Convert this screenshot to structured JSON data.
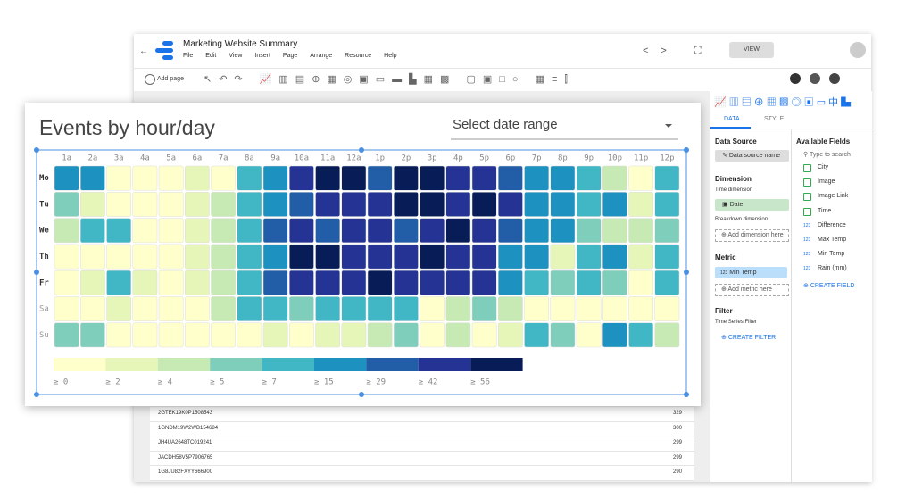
{
  "app": {
    "title": "Marketing Website Summary",
    "menu": [
      "File",
      "Edit",
      "View",
      "Insert",
      "Page",
      "Arrange",
      "Resource",
      "Help"
    ],
    "view_button": "VIEW",
    "add_page": "Add page"
  },
  "panel": {
    "tabs": [
      "DATA",
      "STYLE"
    ],
    "data_source": {
      "heading": "Data Source",
      "name": "Data source name"
    },
    "dimension": {
      "heading": "Dimension",
      "time_label": "Time dimension",
      "time_value": "Date",
      "breakdown_label": "Breakdown dimension",
      "add": "Add dimension here"
    },
    "metric": {
      "heading": "Metric",
      "type": "123",
      "value": "Min Temp",
      "add": "Add metric here"
    },
    "filter": {
      "heading": "Filter",
      "label": "Time Series Filter",
      "action": "CREATE FILTER"
    },
    "fields": {
      "heading": "Available Fields",
      "search": "Type to search",
      "items": [
        {
          "name": "City"
        },
        {
          "name": "Image"
        },
        {
          "name": "Image Link"
        },
        {
          "name": "Time"
        },
        {
          "type": "123",
          "name": "Difference"
        },
        {
          "type": "123",
          "name": "Max Temp"
        },
        {
          "type": "123",
          "name": "Min Temp"
        },
        {
          "type": "123",
          "name": "Rain (mm)"
        }
      ],
      "create": "CREATE FIELD"
    }
  },
  "table": {
    "rows": [
      [
        "2GTEK19K0P1508543",
        329
      ],
      [
        "1GNDM19W2WB154684",
        300
      ],
      [
        "JH4UA2648TC019241",
        299
      ],
      [
        "JACDH58V5P7906765",
        299
      ],
      [
        "1G8JU82FXYY666900",
        290
      ]
    ]
  },
  "date_selector": "Select date range",
  "chart_data": {
    "type": "heatmap",
    "title": "Events by hour/day",
    "columns": [
      "1a",
      "2a",
      "3a",
      "4a",
      "5a",
      "6a",
      "7a",
      "8a",
      "9a",
      "10a",
      "11a",
      "12a",
      "1p",
      "2p",
      "3p",
      "4p",
      "5p",
      "6p",
      "7p",
      "8p",
      "9p",
      "10p",
      "11p",
      "12p"
    ],
    "rows": [
      "Mo",
      "Tu",
      "We",
      "Th",
      "Fr",
      "Sa",
      "Su"
    ],
    "values": [
      [
        20,
        20,
        1,
        1,
        1,
        3,
        1,
        10,
        20,
        48,
        60,
        60,
        35,
        60,
        60,
        48,
        48,
        35,
        20,
        20,
        10,
        4,
        1,
        10
      ],
      [
        6,
        3,
        1,
        1,
        1,
        3,
        4,
        10,
        20,
        35,
        48,
        48,
        48,
        60,
        60,
        48,
        60,
        48,
        20,
        20,
        10,
        20,
        3,
        10
      ],
      [
        4,
        10,
        10,
        1,
        1,
        3,
        4,
        10,
        35,
        48,
        35,
        48,
        48,
        35,
        48,
        60,
        48,
        35,
        20,
        20,
        6,
        4,
        4,
        6
      ],
      [
        1,
        1,
        1,
        1,
        1,
        3,
        4,
        10,
        20,
        60,
        60,
        48,
        48,
        48,
        60,
        48,
        48,
        20,
        20,
        3,
        10,
        20,
        3,
        10
      ],
      [
        1,
        3,
        10,
        3,
        1,
        3,
        4,
        10,
        35,
        48,
        48,
        48,
        60,
        48,
        48,
        48,
        48,
        20,
        10,
        6,
        10,
        6,
        1,
        10
      ],
      [
        1,
        1,
        3,
        1,
        1,
        1,
        4,
        10,
        10,
        6,
        10,
        10,
        10,
        10,
        1,
        4,
        6,
        4,
        1,
        1,
        1,
        1,
        1,
        1
      ],
      [
        6,
        6,
        1,
        1,
        1,
        1,
        1,
        1,
        3,
        1,
        3,
        3,
        4,
        6,
        1,
        4,
        1,
        3,
        10,
        6,
        1,
        20,
        10,
        4
      ]
    ],
    "legend": [
      {
        "value": 0,
        "label": "≥ 0"
      },
      {
        "value": 2,
        "label": "≥ 2"
      },
      {
        "value": 4,
        "label": "≥ 4"
      },
      {
        "value": 5,
        "label": "≥ 5"
      },
      {
        "value": 7,
        "label": "≥ 7"
      },
      {
        "value": 15,
        "label": "≥ 15"
      },
      {
        "value": 29,
        "label": "≥ 29"
      },
      {
        "value": 42,
        "label": "≥ 42"
      },
      {
        "value": 56,
        "label": "≥ 56"
      }
    ],
    "colors": [
      "#ffffcc",
      "#e6f5b8",
      "#c7e9b4",
      "#7fcdbb",
      "#41b6c4",
      "#1d91c0",
      "#225ea8",
      "#253494",
      "#081d58"
    ]
  }
}
